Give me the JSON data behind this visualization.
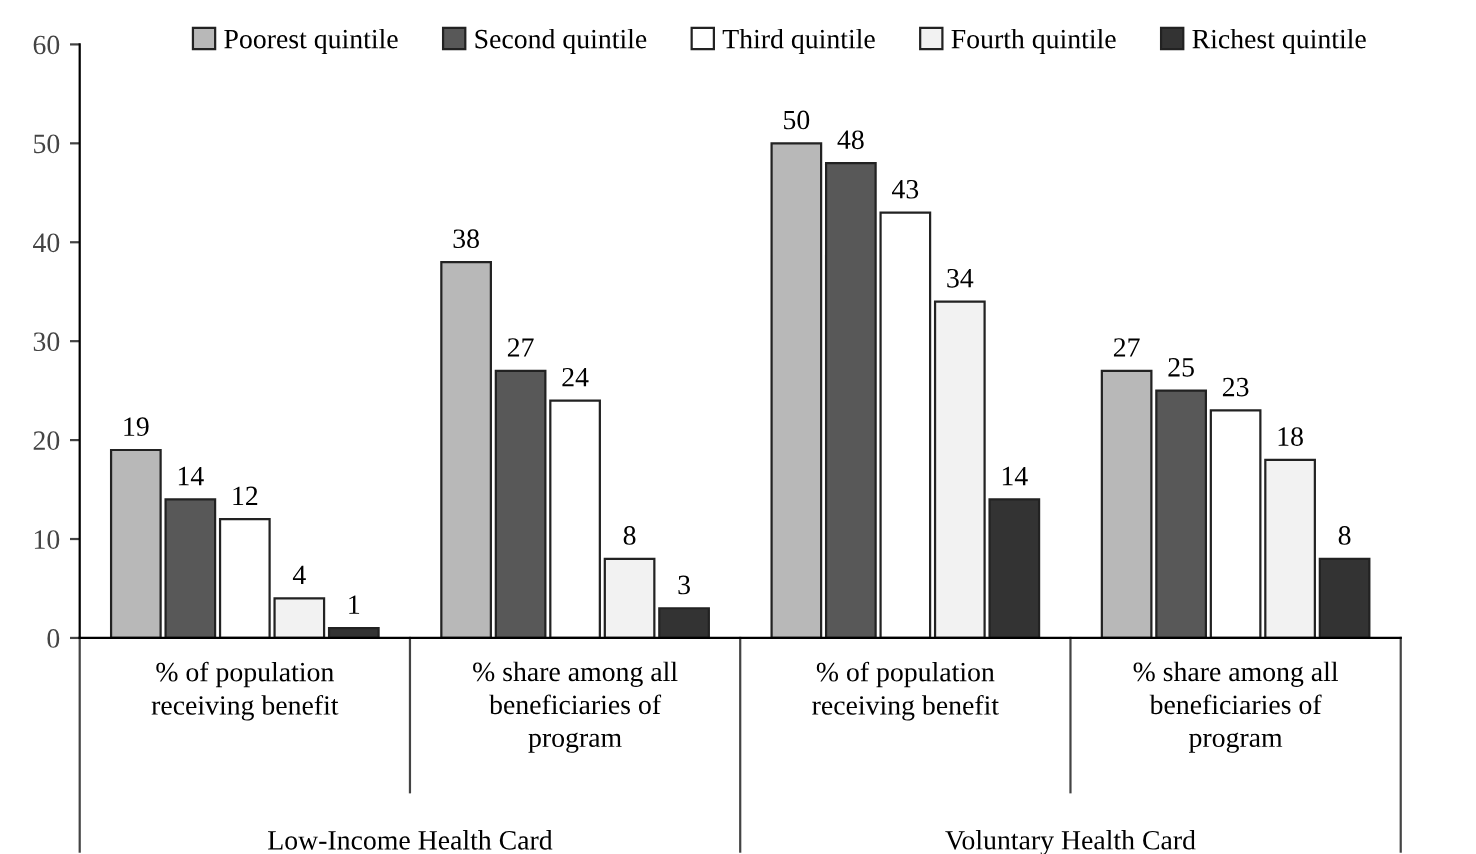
{
  "chart_data": {
    "type": "bar",
    "categories": [
      "% of population\nreceiving benefit",
      "% share among all\nbeneficiaries of\nprogram",
      "% of population\nreceiving benefit",
      "% share among all\nbeneficiaries of\nprogram"
    ],
    "series": [
      {
        "name": "Poorest quintile",
        "color": "#b8b8b8",
        "values": [
          19,
          38,
          50,
          27
        ]
      },
      {
        "name": "Second quintile",
        "color": "#585858",
        "values": [
          14,
          27,
          48,
          25
        ]
      },
      {
        "name": "Third quintile",
        "color": "#ffffff",
        "values": [
          12,
          24,
          43,
          23
        ]
      },
      {
        "name": "Fourth quintile",
        "color": "#f2f2f2",
        "values": [
          4,
          8,
          34,
          18
        ]
      },
      {
        "name": "Richest quintile",
        "color": "#333333",
        "values": [
          1,
          3,
          14,
          8
        ]
      }
    ],
    "annotations": [
      "Low-Income Health Card",
      "Voluntary Health Card"
    ],
    "ylim": [
      0,
      60
    ],
    "yticks": [
      0,
      10,
      20,
      30,
      40,
      50,
      60
    ],
    "data_labels": true,
    "legend": "top",
    "grid": false
  }
}
